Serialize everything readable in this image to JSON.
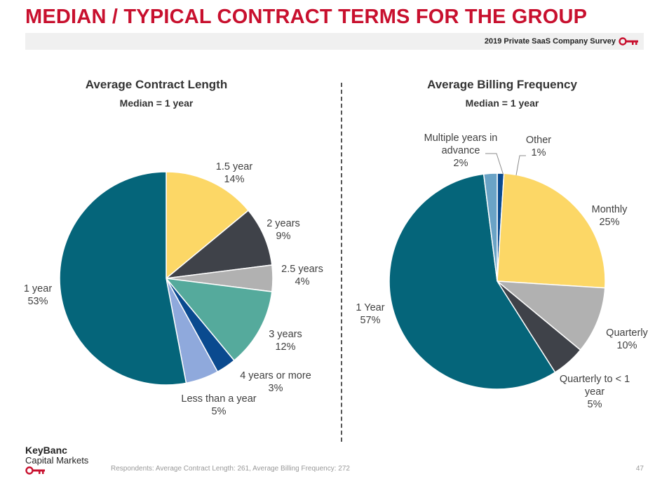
{
  "page": {
    "title": "MEDIAN / TYPICAL CONTRACT TERMS FOR THE GROUP",
    "survey_label": "2019 Private SaaS Company Survey",
    "logo_line1": "KeyBanc",
    "logo_line2": "Capital Markets",
    "footnote": "Respondents: Average Contract Length: 261, Average Billing Frequency: 272",
    "page_number": "47",
    "brand_color": "#c8102e"
  },
  "chart_data": [
    {
      "type": "pie",
      "title": "Average Contract Length",
      "subtitle": "Median = 1 year",
      "slices": [
        {
          "label": "1.5 year",
          "value": 14,
          "value_label": "14%",
          "color": "#fcd766"
        },
        {
          "label": "2 years",
          "value": 9,
          "value_label": "9%",
          "color": "#3f4249"
        },
        {
          "label": "2.5 years",
          "value": 4,
          "value_label": "4%",
          "color": "#b1b1b1"
        },
        {
          "label": "3 years",
          "value": 12,
          "value_label": "12%",
          "color": "#55aa9c"
        },
        {
          "label": "4 years or more",
          "value": 3,
          "value_label": "3%",
          "color": "#0a4a8f"
        },
        {
          "label": "Less than a year",
          "value": 5,
          "value_label": "5%",
          "color": "#8fa9dc"
        },
        {
          "label": "1 year",
          "value": 53,
          "value_label": "53%",
          "color": "#05657a"
        }
      ]
    },
    {
      "type": "pie",
      "title": "Average Billing Frequency",
      "subtitle": "Median = 1 year",
      "slices": [
        {
          "label": "Other",
          "value": 1,
          "value_label": "1%",
          "color": "#0a4a8f"
        },
        {
          "label": "Monthly",
          "value": 25,
          "value_label": "25%",
          "color": "#fcd766"
        },
        {
          "label": "Quarterly",
          "value": 10,
          "value_label": "10%",
          "color": "#b1b1b1"
        },
        {
          "label": "Quarterly to < 1 year",
          "value": 5,
          "value_label": "5%",
          "color": "#3f4249"
        },
        {
          "label": "1 Year",
          "value": 57,
          "value_label": "57%",
          "color": "#05657a"
        },
        {
          "label": "Multiple years in advance",
          "value": 2,
          "value_label": "2%",
          "color": "#6aa3c6"
        }
      ]
    }
  ]
}
